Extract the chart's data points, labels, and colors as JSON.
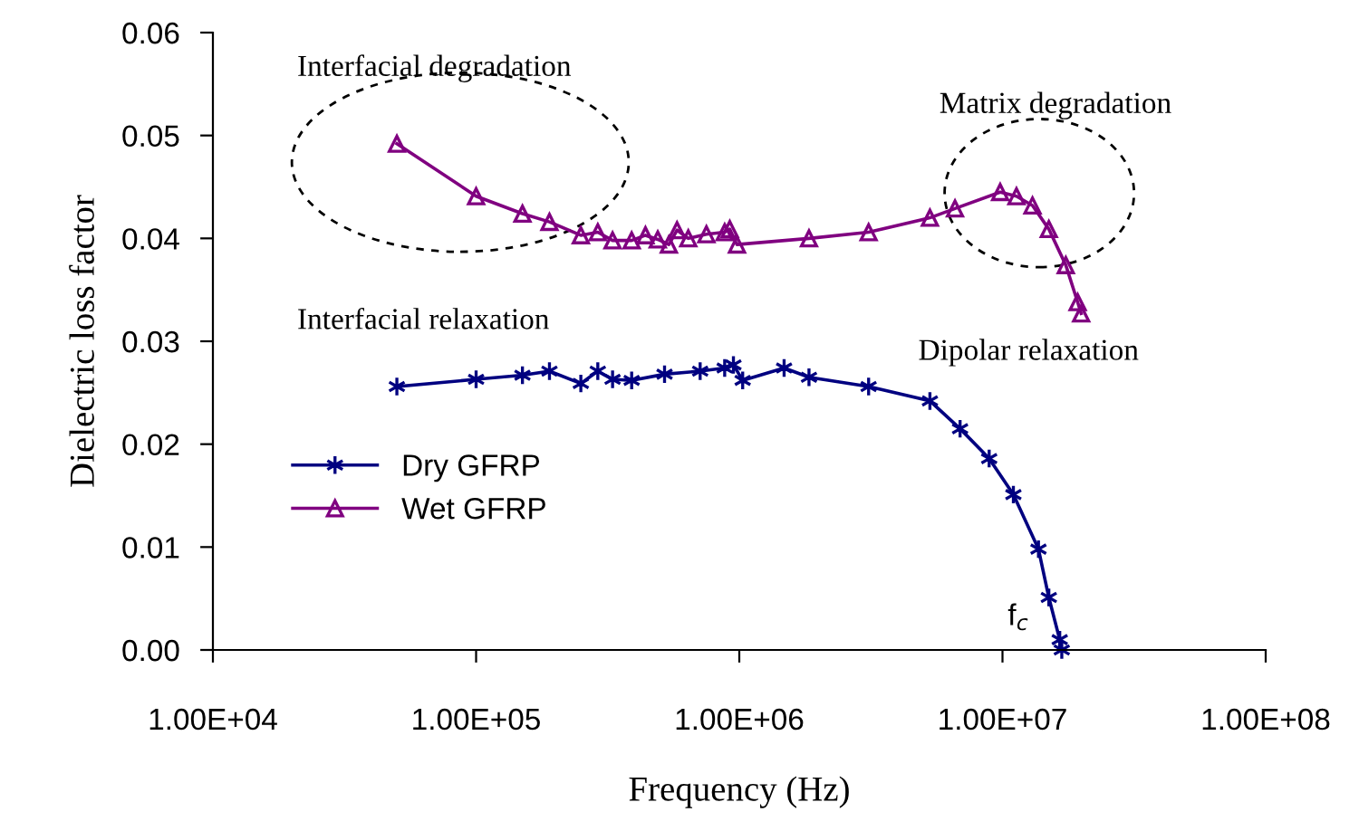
{
  "chart_data": {
    "type": "line",
    "xlabel": "Frequency (Hz)",
    "ylabel": "Dielectric loss factor",
    "log": "x",
    "grid": false,
    "legend": "left",
    "xlim": [
      10000,
      100000000
    ],
    "xticks": [
      {
        "value": 10000,
        "label": "1.00E+04"
      },
      {
        "value": 100000,
        "label": "1.00E+05"
      },
      {
        "value": 1000000,
        "label": "1.00E+06"
      },
      {
        "value": 10000000,
        "label": "1.00E+07"
      },
      {
        "value": 100000000,
        "label": "1.00E+08"
      }
    ],
    "ylim": [
      0,
      0.06
    ],
    "yticks": [
      {
        "value": 0,
        "label": "0.00"
      },
      {
        "value": 0.01,
        "label": "0.01"
      },
      {
        "value": 0.02,
        "label": "0.02"
      },
      {
        "value": 0.03,
        "label": "0.03"
      },
      {
        "value": 0.04,
        "label": "0.04"
      },
      {
        "value": 0.05,
        "label": "0.05"
      },
      {
        "value": 0.06,
        "label": "0.06"
      }
    ],
    "series": [
      {
        "name": "Dry GFRP",
        "color": "#000080",
        "marker": "cross",
        "x": [
          50000,
          100000,
          150000,
          190000,
          250000,
          290000,
          330000,
          390000,
          520000,
          710000,
          880000,
          950000,
          1030000,
          1480000,
          1840000,
          3100000,
          5300000,
          6900000,
          8900000,
          11000000,
          13700000,
          15000000,
          16500000,
          16800000
        ],
        "values": [
          0.0256,
          0.0263,
          0.0267,
          0.0271,
          0.0259,
          0.0271,
          0.0263,
          0.0262,
          0.0268,
          0.0271,
          0.0274,
          0.0277,
          0.0262,
          0.0274,
          0.0265,
          0.0256,
          0.0242,
          0.0215,
          0.0186,
          0.0151,
          0.0098,
          0.0051,
          0.001,
          0.0
        ]
      },
      {
        "name": "Wet GFRP",
        "color": "#800080",
        "marker": "triangle",
        "x": [
          50000,
          100000,
          150000,
          190000,
          250000,
          290000,
          330000,
          390000,
          440000,
          490000,
          540000,
          580000,
          640000,
          750000,
          880000,
          920000,
          980000,
          1840000,
          3100000,
          5300000,
          6600000,
          9800000,
          11300000,
          13000000,
          15000000,
          17400000,
          19300000,
          19900000
        ],
        "values": [
          0.0492,
          0.0441,
          0.0424,
          0.0416,
          0.0403,
          0.0406,
          0.0398,
          0.0398,
          0.0403,
          0.0399,
          0.0394,
          0.0408,
          0.04,
          0.0404,
          0.0406,
          0.0409,
          0.0394,
          0.04,
          0.0406,
          0.042,
          0.0429,
          0.0445,
          0.0441,
          0.0432,
          0.0409,
          0.0374,
          0.0338,
          0.0327
        ]
      }
    ],
    "annotations": [
      "Interfacial degradation",
      "Matrix degradation",
      "Interfacial relaxation",
      "Dipolar relaxation",
      "f$_{c}$"
    ]
  }
}
